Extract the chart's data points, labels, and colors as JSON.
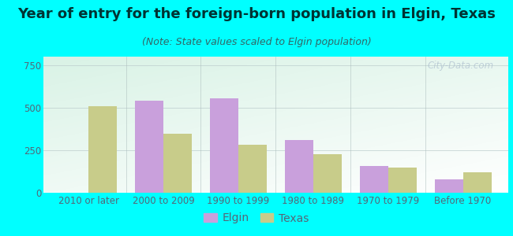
{
  "title": "Year of entry for the foreign-born population in Elgin, Texas",
  "subtitle": "(Note: State values scaled to Elgin population)",
  "categories": [
    "2010 or later",
    "2000 to 2009",
    "1990 to 1999",
    "1980 to 1989",
    "1970 to 1979",
    "Before 1970"
  ],
  "elgin_values": [
    0,
    540,
    555,
    310,
    155,
    75
  ],
  "texas_values": [
    510,
    345,
    280,
    225,
    145,
    120
  ],
  "elgin_color": "#c9a0dc",
  "texas_color": "#c8cc8a",
  "ylim": [
    0,
    800
  ],
  "yticks": [
    0,
    250,
    500,
    750
  ],
  "bar_width": 0.38,
  "background_color": "#00ffff",
  "title_fontsize": 13,
  "subtitle_fontsize": 9,
  "tick_fontsize": 8.5,
  "legend_fontsize": 10,
  "title_color": "#003333",
  "subtitle_color": "#336666",
  "tick_color": "#556677",
  "watermark": "City-Data.com"
}
